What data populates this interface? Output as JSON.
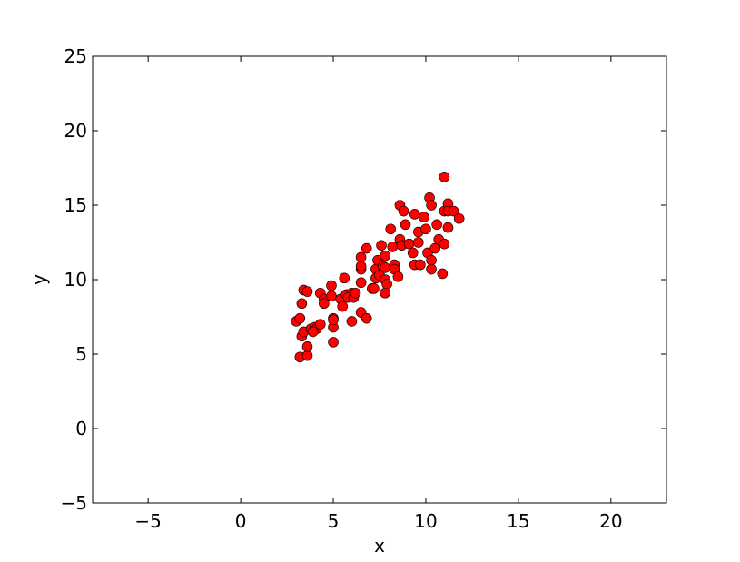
{
  "chart_data": {
    "type": "scatter",
    "title": "",
    "xlabel": "x",
    "ylabel": "y",
    "xlim": [
      -8,
      23
    ],
    "ylim": [
      -5,
      25
    ],
    "xticks": [
      -5,
      0,
      5,
      10,
      15,
      20
    ],
    "yticks": [
      -5,
      0,
      5,
      10,
      15,
      20,
      25
    ],
    "xtick_labels": [
      "−5",
      "0",
      "5",
      "10",
      "15",
      "20"
    ],
    "ytick_labels": [
      "−5",
      "0",
      "5",
      "10",
      "15",
      "20",
      "25"
    ],
    "grid": false,
    "marker_color": "#ff0000",
    "marker_edge_color": "#000000",
    "points": [
      [
        3.2,
        4.8
      ],
      [
        3.6,
        4.9
      ],
      [
        3.6,
        5.5
      ],
      [
        5.0,
        5.8
      ],
      [
        3.3,
        6.2
      ],
      [
        3.4,
        6.5
      ],
      [
        3.0,
        7.2
      ],
      [
        3.2,
        7.4
      ],
      [
        3.8,
        6.7
      ],
      [
        4.0,
        6.8
      ],
      [
        4.1,
        6.7
      ],
      [
        4.3,
        7.0
      ],
      [
        3.9,
        6.5
      ],
      [
        3.3,
        8.4
      ],
      [
        3.4,
        9.3
      ],
      [
        3.6,
        9.2
      ],
      [
        4.3,
        9.1
      ],
      [
        4.5,
        8.7
      ],
      [
        4.5,
        8.4
      ],
      [
        4.9,
        9.6
      ],
      [
        4.9,
        8.9
      ],
      [
        5.0,
        7.4
      ],
      [
        5.0,
        6.8
      ],
      [
        5.0,
        7.3
      ],
      [
        5.6,
        10.1
      ],
      [
        5.4,
        8.7
      ],
      [
        5.5,
        8.2
      ],
      [
        5.7,
        9.0
      ],
      [
        6.0,
        9.1
      ],
      [
        5.8,
        8.8
      ],
      [
        6.1,
        8.8
      ],
      [
        6.2,
        9.1
      ],
      [
        6.0,
        7.2
      ],
      [
        6.5,
        9.8
      ],
      [
        6.5,
        10.7
      ],
      [
        6.5,
        10.9
      ],
      [
        6.5,
        11.5
      ],
      [
        6.8,
        12.1
      ],
      [
        6.5,
        7.8
      ],
      [
        6.8,
        7.4
      ],
      [
        7.1,
        9.4
      ],
      [
        7.2,
        9.4
      ],
      [
        7.3,
        10.7
      ],
      [
        7.4,
        11.3
      ],
      [
        7.3,
        10.1
      ],
      [
        7.5,
        10.3
      ],
      [
        7.6,
        12.3
      ],
      [
        7.8,
        11.6
      ],
      [
        7.7,
        10.9
      ],
      [
        7.8,
        10.8
      ],
      [
        7.8,
        10.0
      ],
      [
        7.9,
        9.7
      ],
      [
        7.8,
        9.1
      ],
      [
        8.1,
        13.4
      ],
      [
        8.2,
        12.2
      ],
      [
        8.3,
        11.0
      ],
      [
        8.3,
        10.7
      ],
      [
        8.5,
        10.2
      ],
      [
        8.6,
        15.0
      ],
      [
        8.8,
        14.6
      ],
      [
        8.6,
        12.7
      ],
      [
        8.7,
        12.3
      ],
      [
        8.9,
        13.7
      ],
      [
        9.1,
        12.4
      ],
      [
        9.3,
        11.8
      ],
      [
        9.4,
        11.0
      ],
      [
        9.4,
        14.4
      ],
      [
        9.6,
        13.2
      ],
      [
        9.6,
        12.5
      ],
      [
        9.7,
        11.0
      ],
      [
        9.9,
        14.2
      ],
      [
        10.0,
        13.4
      ],
      [
        10.1,
        11.8
      ],
      [
        10.2,
        15.5
      ],
      [
        10.3,
        15.0
      ],
      [
        10.3,
        11.3
      ],
      [
        10.3,
        10.7
      ],
      [
        10.5,
        12.1
      ],
      [
        10.6,
        13.7
      ],
      [
        10.7,
        12.7
      ],
      [
        11.0,
        16.9
      ],
      [
        10.9,
        10.4
      ],
      [
        11.0,
        12.4
      ],
      [
        11.0,
        14.6
      ],
      [
        11.2,
        15.1
      ],
      [
        11.2,
        14.6
      ],
      [
        11.2,
        13.5
      ],
      [
        11.5,
        14.6
      ],
      [
        11.8,
        14.1
      ]
    ]
  }
}
